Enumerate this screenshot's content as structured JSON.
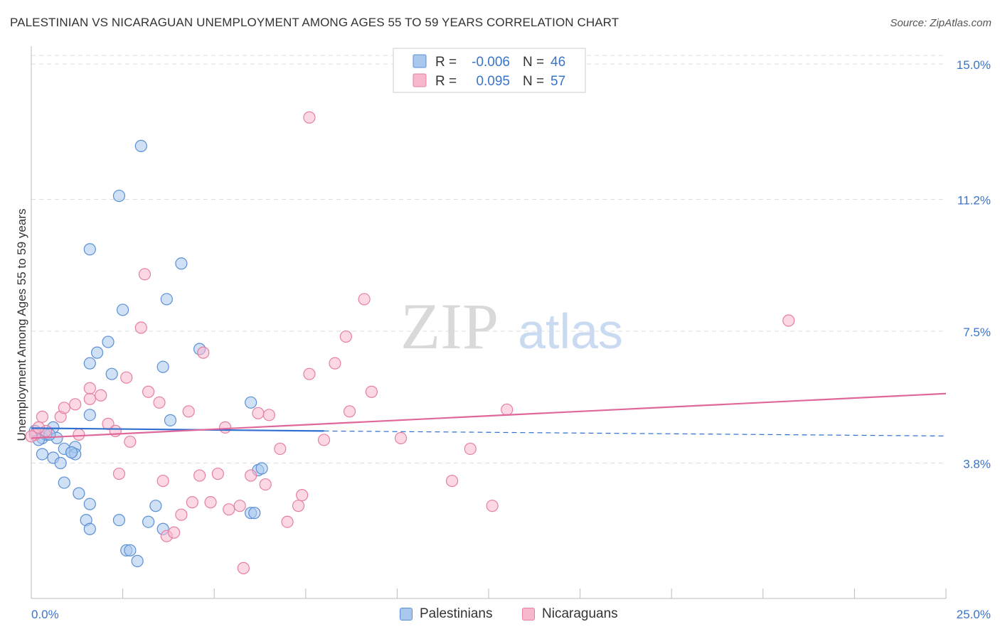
{
  "title": "PALESTINIAN VS NICARAGUAN UNEMPLOYMENT AMONG AGES 55 TO 59 YEARS CORRELATION CHART",
  "source": "Source: ZipAtlas.com",
  "watermark": {
    "zip": "ZIP",
    "atlas": "atlas"
  },
  "chart_data": {
    "type": "scatter",
    "title": "PALESTINIAN VS NICARAGUAN UNEMPLOYMENT AMONG AGES 55 TO 59 YEARS CORRELATION CHART",
    "xlabel": "",
    "ylabel": "Unemployment Among Ages 55 to 59 years",
    "xlim": [
      0,
      25
    ],
    "ylim": [
      0,
      15.5
    ],
    "x_tick_labels": [
      {
        "value": 0,
        "label": "0.0%"
      },
      {
        "value": 25,
        "label": "25.0%"
      }
    ],
    "y_ticks": [
      {
        "value": 3.8,
        "label": "3.8%"
      },
      {
        "value": 7.5,
        "label": "7.5%"
      },
      {
        "value": 11.2,
        "label": "11.2%"
      },
      {
        "value": 15.0,
        "label": "15.0%"
      }
    ],
    "legend": {
      "placement": "top-center",
      "rows": [
        {
          "series": "Palestinians",
          "r_label": "R =",
          "r_value": "-0.006",
          "n_label": "N =",
          "n_value": "46"
        },
        {
          "series": "Nicaraguans",
          "r_label": "R =",
          "r_value": "0.095",
          "n_label": "N =",
          "n_value": "57"
        }
      ]
    },
    "series": [
      {
        "name": "Palestinians",
        "fill": "#aac8ee",
        "stroke": "#5b8fd4",
        "line_color": "#2f6fcf",
        "trend": {
          "x0": 0,
          "y0": 4.78,
          "x1": 8.0,
          "y1": 4.7,
          "dash_to_x": 25.0,
          "dash_to_y": 4.56
        },
        "points": [
          [
            0.1,
            4.7
          ],
          [
            0.3,
            4.5
          ],
          [
            0.4,
            4.6
          ],
          [
            0.6,
            4.8
          ],
          [
            0.7,
            4.5
          ],
          [
            0.9,
            4.2
          ],
          [
            1.1,
            4.1
          ],
          [
            1.2,
            4.25
          ],
          [
            0.3,
            4.05
          ],
          [
            0.6,
            3.95
          ],
          [
            0.8,
            3.8
          ],
          [
            1.2,
            4.05
          ],
          [
            0.9,
            3.25
          ],
          [
            1.3,
            2.95
          ],
          [
            1.6,
            2.65
          ],
          [
            1.5,
            2.2
          ],
          [
            1.6,
            1.95
          ],
          [
            2.4,
            2.2
          ],
          [
            2.6,
            1.35
          ],
          [
            2.7,
            1.35
          ],
          [
            2.9,
            1.05
          ],
          [
            3.2,
            2.15
          ],
          [
            3.4,
            2.6
          ],
          [
            3.6,
            1.95
          ],
          [
            3.8,
            5.0
          ],
          [
            3.6,
            6.5
          ],
          [
            1.6,
            6.6
          ],
          [
            1.8,
            6.9
          ],
          [
            2.1,
            7.2
          ],
          [
            2.2,
            6.3
          ],
          [
            2.5,
            8.1
          ],
          [
            3.7,
            8.4
          ],
          [
            1.6,
            9.8
          ],
          [
            4.1,
            9.4
          ],
          [
            2.4,
            11.3
          ],
          [
            3.0,
            12.7
          ],
          [
            4.6,
            7.0
          ],
          [
            6.0,
            5.5
          ],
          [
            6.2,
            3.6
          ],
          [
            6.3,
            3.65
          ],
          [
            6.0,
            2.4
          ],
          [
            6.1,
            2.4
          ],
          [
            1.6,
            5.15
          ],
          [
            0.2,
            4.45
          ],
          [
            0.5,
            4.6
          ],
          [
            1.1,
            4.1
          ]
        ]
      },
      {
        "name": "Nicaraguans",
        "fill": "#f7b8cd",
        "stroke": "#e57fa2",
        "line_color": "#e0679a",
        "trend": {
          "x0": 0,
          "y0": 4.5,
          "x1": 25.0,
          "y1": 5.75
        },
        "points": [
          [
            0.1,
            4.6
          ],
          [
            0.3,
            5.1
          ],
          [
            0.4,
            4.7
          ],
          [
            0.8,
            5.1
          ],
          [
            0.9,
            5.35
          ],
          [
            1.2,
            5.45
          ],
          [
            1.3,
            4.6
          ],
          [
            1.6,
            5.6
          ],
          [
            1.6,
            5.9
          ],
          [
            1.9,
            5.7
          ],
          [
            2.1,
            4.9
          ],
          [
            2.3,
            4.7
          ],
          [
            2.4,
            3.5
          ],
          [
            2.6,
            6.2
          ],
          [
            2.7,
            4.4
          ],
          [
            3.0,
            7.6
          ],
          [
            3.1,
            9.1
          ],
          [
            3.2,
            5.8
          ],
          [
            3.5,
            5.5
          ],
          [
            3.6,
            3.3
          ],
          [
            3.7,
            1.75
          ],
          [
            3.9,
            1.85
          ],
          [
            4.1,
            2.35
          ],
          [
            4.3,
            5.25
          ],
          [
            4.4,
            2.7
          ],
          [
            4.6,
            3.45
          ],
          [
            4.7,
            6.9
          ],
          [
            4.9,
            2.7
          ],
          [
            5.1,
            3.5
          ],
          [
            5.3,
            4.8
          ],
          [
            5.4,
            2.5
          ],
          [
            5.7,
            2.6
          ],
          [
            5.8,
            0.85
          ],
          [
            6.0,
            3.45
          ],
          [
            6.2,
            5.2
          ],
          [
            6.4,
            3.2
          ],
          [
            6.5,
            5.15
          ],
          [
            6.8,
            4.2
          ],
          [
            7.0,
            2.15
          ],
          [
            7.3,
            2.6
          ],
          [
            7.4,
            2.9
          ],
          [
            7.6,
            13.5
          ],
          [
            7.6,
            6.3
          ],
          [
            8.0,
            4.45
          ],
          [
            8.3,
            6.6
          ],
          [
            8.6,
            7.35
          ],
          [
            8.7,
            5.25
          ],
          [
            9.1,
            8.4
          ],
          [
            9.3,
            5.8
          ],
          [
            10.1,
            4.5
          ],
          [
            11.5,
            3.3
          ],
          [
            12.0,
            4.2
          ],
          [
            12.6,
            2.6
          ],
          [
            13.0,
            5.3
          ],
          [
            20.7,
            7.8
          ],
          [
            0.0,
            4.55
          ],
          [
            0.2,
            4.8
          ]
        ]
      }
    ]
  }
}
